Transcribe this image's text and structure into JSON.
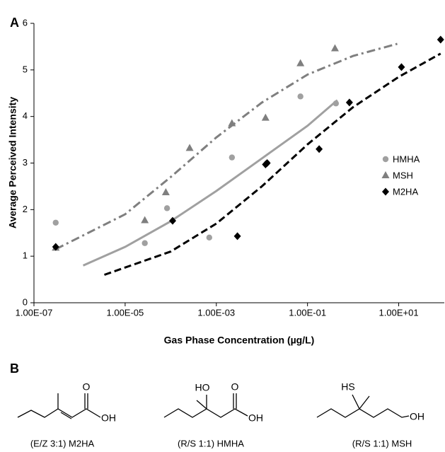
{
  "chart_data": {
    "type": "scatter",
    "panel_label": "A",
    "x_label": "Gas Phase Concentration (µg/L)",
    "y_label": "Average Perceived Intensity",
    "xlim": [
      1e-07,
      100
    ],
    "ylim": [
      0,
      6
    ],
    "log_x": true,
    "legend": "right",
    "xticks": [
      {
        "value": 1e-07,
        "label": "1.00E-07"
      },
      {
        "value": 1e-05,
        "label": "1.00E-05"
      },
      {
        "value": 0.001,
        "label": "1.00E-03"
      },
      {
        "value": 0.1,
        "label": "1.00E-01"
      },
      {
        "value": 10,
        "label": "1.00E+01"
      }
    ],
    "yticks": [
      0,
      1,
      2,
      3,
      4,
      5,
      6
    ],
    "series": [
      {
        "name": "HMHA",
        "color": "#a0a0a0",
        "marker": "circle",
        "x": [
          3e-07,
          2.7e-05,
          8.3e-05,
          0.0007,
          0.0022,
          0.013,
          0.07,
          0.42
        ],
        "values": [
          1.72,
          1.28,
          2.03,
          1.4,
          3.12,
          3.0,
          4.43,
          4.28
        ],
        "fit": {
          "dash": "solid",
          "x": [
            1.2e-06,
            1e-05,
            0.0001,
            0.001,
            0.01,
            0.1,
            0.45
          ],
          "values": [
            0.8,
            1.2,
            1.75,
            2.4,
            3.1,
            3.8,
            4.35
          ]
        }
      },
      {
        "name": "MSH",
        "color": "#7f7f7f",
        "marker": "triangle",
        "x": [
          3e-07,
          2.7e-05,
          7.8e-05,
          0.00026,
          0.0022,
          0.012,
          0.07,
          0.4
        ],
        "values": [
          1.18,
          1.77,
          2.37,
          3.32,
          3.85,
          3.97,
          5.14,
          5.46
        ],
        "fit": {
          "dash": "dashdot",
          "x": [
            3e-07,
            1e-05,
            0.0001,
            0.001,
            0.01,
            0.1,
            1,
            9.3
          ],
          "values": [
            1.15,
            1.9,
            2.7,
            3.55,
            4.3,
            4.9,
            5.3,
            5.56
          ]
        }
      },
      {
        "name": "M2HA",
        "color": "#000000",
        "marker": "diamond",
        "x": [
          3e-07,
          0.00011,
          0.0029,
          0.012,
          0.013,
          0.18,
          0.83,
          11.5,
          83
        ],
        "values": [
          1.2,
          1.76,
          1.43,
          2.97,
          3.0,
          3.3,
          4.3,
          5.06,
          5.65
        ],
        "fit": {
          "dash": "dashed",
          "x": [
            3.5e-06,
            0.0001,
            0.001,
            0.01,
            0.1,
            1,
            10,
            83
          ],
          "values": [
            0.6,
            1.1,
            1.7,
            2.5,
            3.4,
            4.2,
            4.85,
            5.35
          ]
        }
      }
    ]
  },
  "panel_b": {
    "label": "B",
    "structures": [
      {
        "caption": "(E/Z 3:1) M2HA",
        "atoms": [
          "O",
          "OH"
        ]
      },
      {
        "caption": "(R/S 1:1) HMHA",
        "atoms": [
          "HO",
          "O",
          "OH"
        ]
      },
      {
        "caption": "(R/S 1:1) MSH",
        "atoms": [
          "HS",
          "OH"
        ]
      }
    ]
  }
}
